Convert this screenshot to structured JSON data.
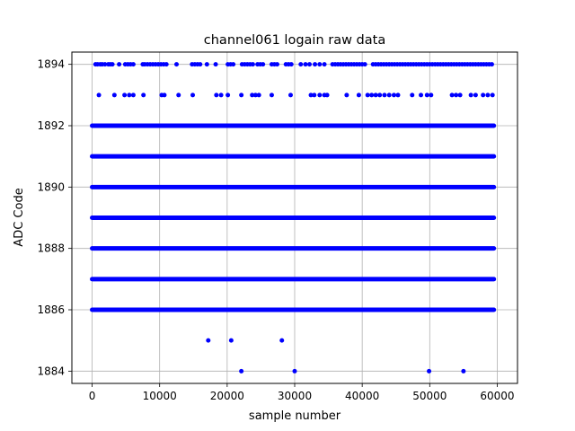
{
  "chart_data": {
    "type": "scatter",
    "title": "channel061 logain raw data",
    "xlabel": "sample number",
    "ylabel": "ADC Code",
    "xlim": [
      -3000,
      63000
    ],
    "ylim": [
      1883.6,
      1894.4
    ],
    "xticks": [
      0,
      10000,
      20000,
      30000,
      40000,
      50000,
      60000
    ],
    "xtick_labels": [
      "0",
      "10000",
      "20000",
      "30000",
      "40000",
      "50000",
      "60000"
    ],
    "yticks": [
      1884,
      1886,
      1888,
      1890,
      1892,
      1894
    ],
    "ytick_labels": [
      "1884",
      "1886",
      "1888",
      "1890",
      "1892",
      "1894"
    ],
    "grid": true,
    "marker_color": "#0000ff",
    "dense_bands": [
      {
        "y": 1886,
        "x_range": [
          0,
          59500
        ]
      },
      {
        "y": 1887,
        "x_range": [
          0,
          59500
        ]
      },
      {
        "y": 1888,
        "x_range": [
          0,
          59500
        ]
      },
      {
        "y": 1889,
        "x_range": [
          0,
          59500
        ]
      },
      {
        "y": 1890,
        "x_range": [
          0,
          59500
        ]
      },
      {
        "y": 1891,
        "x_range": [
          0,
          59500
        ]
      },
      {
        "y": 1892,
        "x_range": [
          0,
          59500
        ]
      }
    ],
    "points": [
      {
        "x": 17200,
        "y": 1885
      },
      {
        "x": 20600,
        "y": 1885
      },
      {
        "x": 28100,
        "y": 1885
      },
      {
        "x": 22100,
        "y": 1884
      },
      {
        "x": 30000,
        "y": 1884
      },
      {
        "x": 49900,
        "y": 1884
      },
      {
        "x": 55000,
        "y": 1884
      },
      {
        "x": 1000,
        "y": 1893
      },
      {
        "x": 3300,
        "y": 1893
      },
      {
        "x": 4800,
        "y": 1893
      },
      {
        "x": 5500,
        "y": 1893
      },
      {
        "x": 6100,
        "y": 1893
      },
      {
        "x": 7600,
        "y": 1893
      },
      {
        "x": 10300,
        "y": 1893
      },
      {
        "x": 10700,
        "y": 1893
      },
      {
        "x": 12800,
        "y": 1893
      },
      {
        "x": 14900,
        "y": 1893
      },
      {
        "x": 18400,
        "y": 1893
      },
      {
        "x": 19100,
        "y": 1893
      },
      {
        "x": 20100,
        "y": 1893
      },
      {
        "x": 22100,
        "y": 1893
      },
      {
        "x": 23700,
        "y": 1893
      },
      {
        "x": 24200,
        "y": 1893
      },
      {
        "x": 24700,
        "y": 1893
      },
      {
        "x": 26600,
        "y": 1893
      },
      {
        "x": 29400,
        "y": 1893
      },
      {
        "x": 32400,
        "y": 1893
      },
      {
        "x": 32900,
        "y": 1893
      },
      {
        "x": 33700,
        "y": 1893
      },
      {
        "x": 34400,
        "y": 1893
      },
      {
        "x": 34800,
        "y": 1893
      },
      {
        "x": 37700,
        "y": 1893
      },
      {
        "x": 39500,
        "y": 1893
      },
      {
        "x": 40800,
        "y": 1893
      },
      {
        "x": 41400,
        "y": 1893
      },
      {
        "x": 42000,
        "y": 1893
      },
      {
        "x": 42600,
        "y": 1893
      },
      {
        "x": 43300,
        "y": 1893
      },
      {
        "x": 44000,
        "y": 1893
      },
      {
        "x": 44700,
        "y": 1893
      },
      {
        "x": 45300,
        "y": 1893
      },
      {
        "x": 47400,
        "y": 1893
      },
      {
        "x": 48700,
        "y": 1893
      },
      {
        "x": 49600,
        "y": 1893
      },
      {
        "x": 50200,
        "y": 1893
      },
      {
        "x": 53300,
        "y": 1893
      },
      {
        "x": 53900,
        "y": 1893
      },
      {
        "x": 54500,
        "y": 1893
      },
      {
        "x": 56100,
        "y": 1893
      },
      {
        "x": 56800,
        "y": 1893
      },
      {
        "x": 57900,
        "y": 1893
      },
      {
        "x": 58600,
        "y": 1893
      },
      {
        "x": 59300,
        "y": 1893
      },
      {
        "x": 500,
        "y": 1894
      },
      {
        "x": 800,
        "y": 1894
      },
      {
        "x": 1200,
        "y": 1894
      },
      {
        "x": 1500,
        "y": 1894
      },
      {
        "x": 1900,
        "y": 1894
      },
      {
        "x": 2400,
        "y": 1894
      },
      {
        "x": 2700,
        "y": 1894
      },
      {
        "x": 3000,
        "y": 1894
      },
      {
        "x": 4000,
        "y": 1894
      },
      {
        "x": 4900,
        "y": 1894
      },
      {
        "x": 5300,
        "y": 1894
      },
      {
        "x": 5700,
        "y": 1894
      },
      {
        "x": 6100,
        "y": 1894
      },
      {
        "x": 7500,
        "y": 1894
      },
      {
        "x": 7800,
        "y": 1894
      },
      {
        "x": 8200,
        "y": 1894
      },
      {
        "x": 8600,
        "y": 1894
      },
      {
        "x": 9000,
        "y": 1894
      },
      {
        "x": 9400,
        "y": 1894
      },
      {
        "x": 9800,
        "y": 1894
      },
      {
        "x": 10200,
        "y": 1894
      },
      {
        "x": 10600,
        "y": 1894
      },
      {
        "x": 11000,
        "y": 1894
      },
      {
        "x": 12500,
        "y": 1894
      },
      {
        "x": 14800,
        "y": 1894
      },
      {
        "x": 15200,
        "y": 1894
      },
      {
        "x": 15600,
        "y": 1894
      },
      {
        "x": 16000,
        "y": 1894
      },
      {
        "x": 17000,
        "y": 1894
      },
      {
        "x": 18300,
        "y": 1894
      },
      {
        "x": 20100,
        "y": 1894
      },
      {
        "x": 20500,
        "y": 1894
      },
      {
        "x": 20900,
        "y": 1894
      },
      {
        "x": 22200,
        "y": 1894
      },
      {
        "x": 22600,
        "y": 1894
      },
      {
        "x": 23000,
        "y": 1894
      },
      {
        "x": 23400,
        "y": 1894
      },
      {
        "x": 23800,
        "y": 1894
      },
      {
        "x": 24500,
        "y": 1894
      },
      {
        "x": 24900,
        "y": 1894
      },
      {
        "x": 25300,
        "y": 1894
      },
      {
        "x": 26600,
        "y": 1894
      },
      {
        "x": 27000,
        "y": 1894
      },
      {
        "x": 27400,
        "y": 1894
      },
      {
        "x": 28700,
        "y": 1894
      },
      {
        "x": 29100,
        "y": 1894
      },
      {
        "x": 29500,
        "y": 1894
      },
      {
        "x": 30900,
        "y": 1894
      },
      {
        "x": 31600,
        "y": 1894
      },
      {
        "x": 32200,
        "y": 1894
      },
      {
        "x": 33000,
        "y": 1894
      },
      {
        "x": 33700,
        "y": 1894
      },
      {
        "x": 34400,
        "y": 1894
      },
      {
        "x": 35600,
        "y": 1894
      },
      {
        "x": 36000,
        "y": 1894
      },
      {
        "x": 36400,
        "y": 1894
      },
      {
        "x": 36800,
        "y": 1894
      },
      {
        "x": 37200,
        "y": 1894
      },
      {
        "x": 37600,
        "y": 1894
      },
      {
        "x": 38000,
        "y": 1894
      },
      {
        "x": 38400,
        "y": 1894
      },
      {
        "x": 38800,
        "y": 1894
      },
      {
        "x": 39200,
        "y": 1894
      },
      {
        "x": 39600,
        "y": 1894
      },
      {
        "x": 40000,
        "y": 1894
      },
      {
        "x": 40400,
        "y": 1894
      },
      {
        "x": 41600,
        "y": 1894
      },
      {
        "x": 42000,
        "y": 1894
      },
      {
        "x": 42400,
        "y": 1894
      },
      {
        "x": 42800,
        "y": 1894
      },
      {
        "x": 43200,
        "y": 1894
      },
      {
        "x": 43600,
        "y": 1894
      },
      {
        "x": 44000,
        "y": 1894
      },
      {
        "x": 44400,
        "y": 1894
      },
      {
        "x": 44800,
        "y": 1894
      },
      {
        "x": 45200,
        "y": 1894
      },
      {
        "x": 45600,
        "y": 1894
      },
      {
        "x": 46000,
        "y": 1894
      },
      {
        "x": 46400,
        "y": 1894
      },
      {
        "x": 46800,
        "y": 1894
      },
      {
        "x": 47200,
        "y": 1894
      },
      {
        "x": 47600,
        "y": 1894
      },
      {
        "x": 48000,
        "y": 1894
      },
      {
        "x": 48400,
        "y": 1894
      },
      {
        "x": 48800,
        "y": 1894
      },
      {
        "x": 49200,
        "y": 1894
      },
      {
        "x": 49600,
        "y": 1894
      },
      {
        "x": 50000,
        "y": 1894
      },
      {
        "x": 50400,
        "y": 1894
      },
      {
        "x": 50800,
        "y": 1894
      },
      {
        "x": 51200,
        "y": 1894
      },
      {
        "x": 51600,
        "y": 1894
      },
      {
        "x": 52000,
        "y": 1894
      },
      {
        "x": 52400,
        "y": 1894
      },
      {
        "x": 52800,
        "y": 1894
      },
      {
        "x": 53200,
        "y": 1894
      },
      {
        "x": 53600,
        "y": 1894
      },
      {
        "x": 54000,
        "y": 1894
      },
      {
        "x": 54400,
        "y": 1894
      },
      {
        "x": 54800,
        "y": 1894
      },
      {
        "x": 55200,
        "y": 1894
      },
      {
        "x": 55600,
        "y": 1894
      },
      {
        "x": 56000,
        "y": 1894
      },
      {
        "x": 56400,
        "y": 1894
      },
      {
        "x": 56800,
        "y": 1894
      },
      {
        "x": 57200,
        "y": 1894
      },
      {
        "x": 57600,
        "y": 1894
      },
      {
        "x": 58000,
        "y": 1894
      },
      {
        "x": 58400,
        "y": 1894
      },
      {
        "x": 58800,
        "y": 1894
      },
      {
        "x": 59200,
        "y": 1894
      }
    ]
  }
}
